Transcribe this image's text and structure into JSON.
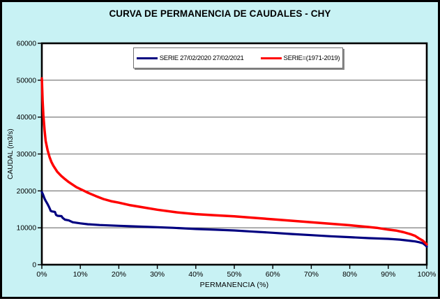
{
  "title": "CURVA DE PERMANENCIA DE CAUDALES - CHY",
  "colors": {
    "background": "#c8f2f4",
    "plot_background": "#ffffff",
    "frame": "#000000",
    "gridline": "#6e6e6e",
    "series_blue": "#000080",
    "series_red": "#ff0000",
    "legend_border": "#707070"
  },
  "legend": {
    "items": [
      {
        "label": "SERIE 27/02/2020 27/02/2021",
        "color": "#000080"
      },
      {
        "label": "SERIE=(1971-2019)",
        "color": "#ff0000"
      }
    ]
  },
  "chart_data": {
    "type": "line",
    "title": "CURVA DE PERMANENCIA DE CAUDALES - CHY",
    "xlabel": "PERMANENCIA (%)",
    "ylabel": "CAUDAL (m3/s)",
    "xlim": [
      0,
      100
    ],
    "ylim": [
      0,
      60000
    ],
    "x_ticks": [
      0,
      10,
      20,
      30,
      40,
      50,
      60,
      70,
      80,
      90,
      100
    ],
    "x_tick_labels": [
      "0%",
      "10%",
      "20%",
      "30%",
      "40%",
      "50%",
      "60%",
      "70%",
      "80%",
      "90%",
      "100%"
    ],
    "y_ticks": [
      0,
      10000,
      20000,
      30000,
      40000,
      50000,
      60000
    ],
    "y_tick_labels": [
      "0",
      "10000",
      "20000",
      "30000",
      "40000",
      "50000",
      "60000"
    ],
    "grid": "horizontal",
    "legend_position": "inside-top-center",
    "series": [
      {
        "name": "SERIE 27/02/2020 27/02/2021",
        "color": "#000080",
        "points": [
          [
            0,
            19700
          ],
          [
            0.3,
            19000
          ],
          [
            0.7,
            17900
          ],
          [
            1,
            17300
          ],
          [
            1.4,
            16600
          ],
          [
            1.8,
            15800
          ],
          [
            2.1,
            15100
          ],
          [
            2.3,
            14600
          ],
          [
            2.6,
            14450
          ],
          [
            3.4,
            14300
          ],
          [
            3.7,
            13500
          ],
          [
            4.1,
            13250
          ],
          [
            5.1,
            13150
          ],
          [
            5.4,
            12700
          ],
          [
            6,
            12200
          ],
          [
            7,
            12000
          ],
          [
            8,
            11500
          ],
          [
            10,
            11200
          ],
          [
            12,
            10950
          ],
          [
            15,
            10750
          ],
          [
            20,
            10550
          ],
          [
            25,
            10330
          ],
          [
            30,
            10150
          ],
          [
            34,
            10000
          ],
          [
            40,
            9680
          ],
          [
            45,
            9480
          ],
          [
            50,
            9280
          ],
          [
            55,
            8950
          ],
          [
            60,
            8650
          ],
          [
            65,
            8300
          ],
          [
            70,
            8000
          ],
          [
            75,
            7700
          ],
          [
            80,
            7450
          ],
          [
            85,
            7200
          ],
          [
            90,
            7000
          ],
          [
            93,
            6800
          ],
          [
            95,
            6550
          ],
          [
            97,
            6300
          ],
          [
            98,
            6100
          ],
          [
            99,
            5800
          ],
          [
            99.5,
            5400
          ],
          [
            100,
            4900
          ]
        ]
      },
      {
        "name": "SERIE=(1971-2019)",
        "color": "#ff0000",
        "points": [
          [
            0,
            50500
          ],
          [
            0.2,
            44500
          ],
          [
            0.4,
            40500
          ],
          [
            0.7,
            36500
          ],
          [
            1,
            33500
          ],
          [
            1.5,
            31000
          ],
          [
            2,
            29200
          ],
          [
            2.5,
            27800
          ],
          [
            3,
            26800
          ],
          [
            4,
            25200
          ],
          [
            5,
            24100
          ],
          [
            6,
            23200
          ],
          [
            7,
            22400
          ],
          [
            8,
            21700
          ],
          [
            9,
            21000
          ],
          [
            10,
            20500
          ],
          [
            11,
            20000
          ],
          [
            12,
            19500
          ],
          [
            14,
            18600
          ],
          [
            16,
            17800
          ],
          [
            18,
            17200
          ],
          [
            20,
            16800
          ],
          [
            23,
            16100
          ],
          [
            26,
            15600
          ],
          [
            30,
            14900
          ],
          [
            35,
            14200
          ],
          [
            40,
            13700
          ],
          [
            45,
            13400
          ],
          [
            50,
            13100
          ],
          [
            55,
            12700
          ],
          [
            60,
            12300
          ],
          [
            65,
            11900
          ],
          [
            70,
            11500
          ],
          [
            75,
            11100
          ],
          [
            80,
            10700
          ],
          [
            85,
            10200
          ],
          [
            87,
            10000
          ],
          [
            90,
            9500
          ],
          [
            92,
            9250
          ],
          [
            94,
            8800
          ],
          [
            96,
            8200
          ],
          [
            97,
            7800
          ],
          [
            98,
            7100
          ],
          [
            99,
            6500
          ],
          [
            99.5,
            6000
          ],
          [
            100,
            5500
          ]
        ]
      }
    ]
  }
}
